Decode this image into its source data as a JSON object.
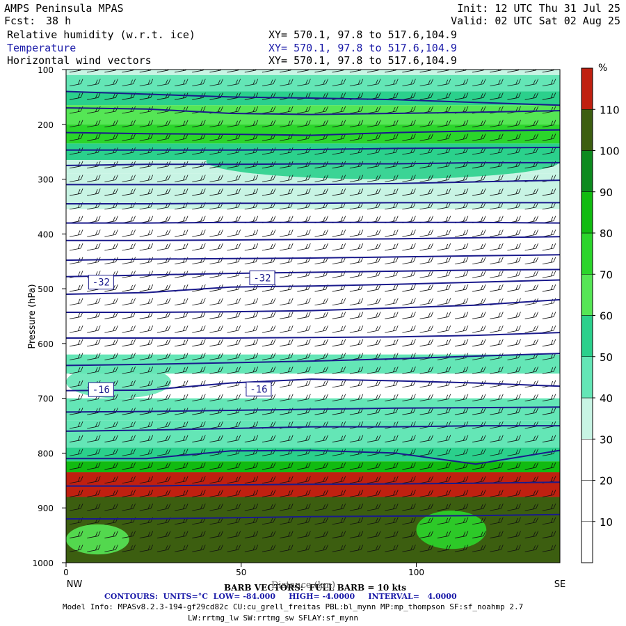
{
  "header": {
    "model": "AMPS Peninsula MPAS",
    "fcst_label": "Fcst:",
    "fcst_value": "38 h",
    "init": "Init: 12 UTC Thu 31 Jul 25",
    "valid": "Valid: 02 UTC Sat 02 Aug 25",
    "fields": [
      {
        "name": "Relative humidity (w.r.t. ice)",
        "xy": "XY= 570.1, 97.8 to 517.6,104.9",
        "color": "#000000"
      },
      {
        "name": "Temperature",
        "xy": "XY= 570.1, 97.8 to 517.6,104.9",
        "color": "#1a1aa8"
      },
      {
        "name": "Horizontal wind vectors",
        "xy": "XY= 570.1, 97.8 to 517.6,104.9",
        "color": "#000000"
      }
    ]
  },
  "footer": {
    "barb_text": "BARB VECTORS:  FULL BARB = 10 kts",
    "distance_label": "Distance (km)",
    "contours_text": "CONTOURS:  UNITS=°C  LOW= -84.000     HIGH= -4.0000     INTERVAL=   4.0000",
    "model_info_1": "Model Info: MPASv8.2.3-194-gf29cd82c CU:cu_grell_freitas PBL:bl_mynn MP:mp_thompson SF:sf_noahmp 2.7",
    "model_info_2": "LW:rrtmg_lw SW:rrtmg_sw SFLAY:sf_mynn"
  },
  "chart_data": {
    "type": "heatmap",
    "x_label": "Distance (km)",
    "y_label": "Pressure (hPa)",
    "xlim": [
      0,
      141
    ],
    "ylim": [
      1000,
      100
    ],
    "x_ticks": [
      0,
      50,
      100
    ],
    "y_ticks": [
      100,
      200,
      300,
      400,
      500,
      600,
      700,
      800,
      900,
      1000
    ],
    "x_end_labels": {
      "left": "NW",
      "right": "SE"
    },
    "colorbar": {
      "unit": "%",
      "levels": [
        0,
        10,
        20,
        30,
        40,
        50,
        60,
        70,
        80,
        90,
        100,
        110,
        120
      ],
      "tick_labels": [
        "10",
        "20",
        "30",
        "40",
        "50",
        "60",
        "70",
        "80",
        "90",
        "100",
        "110"
      ],
      "colors": [
        "#ffffff",
        "#ffffff",
        "#ffffff",
        "#c8f4e4",
        "#64e6b6",
        "#2bd08c",
        "#55e655",
        "#2bd52b",
        "#11bb11",
        "#0d8a1f",
        "#3c5e10",
        "#c02010"
      ]
    },
    "rh_layers": [
      {
        "p_top": 100,
        "p_bottom": 110,
        "rh": 35
      },
      {
        "p_top": 110,
        "p_bottom": 140,
        "rh": 42
      },
      {
        "p_top": 140,
        "p_bottom": 165,
        "rh": 55
      },
      {
        "p_top": 165,
        "p_bottom": 200,
        "rh": 65
      },
      {
        "p_top": 200,
        "p_bottom": 235,
        "rh": 75
      },
      {
        "p_top": 235,
        "p_bottom": 265,
        "rh": 55
      },
      {
        "p_top": 265,
        "p_bottom": 290,
        "rh": 38
      },
      {
        "p_top": 290,
        "p_bottom": 355,
        "rh": 32
      },
      {
        "p_top": 355,
        "p_bottom": 620,
        "rh": 15
      },
      {
        "p_top": 620,
        "p_bottom": 655,
        "rh": 42
      },
      {
        "p_top": 655,
        "p_bottom": 700,
        "rh": 15
      },
      {
        "p_top": 700,
        "p_bottom": 740,
        "rh": 45
      },
      {
        "p_top": 740,
        "p_bottom": 790,
        "rh": 48
      },
      {
        "p_top": 790,
        "p_bottom": 815,
        "rh": 55
      },
      {
        "p_top": 815,
        "p_bottom": 835,
        "rh": 88
      },
      {
        "p_top": 835,
        "p_bottom": 880,
        "rh": 112
      },
      {
        "p_top": 880,
        "p_bottom": 1000,
        "rh": 105
      }
    ],
    "rh_patches": [
      {
        "x": [
          40,
          141
        ],
        "p": [
          235,
          300
        ],
        "rh": 55
      },
      {
        "x": [
          0,
          30
        ],
        "p": [
          640,
          700
        ],
        "rh": 45
      },
      {
        "x": [
          100,
          120
        ],
        "p": [
          905,
          975
        ],
        "rh": 75
      },
      {
        "x": [
          0,
          18
        ],
        "p": [
          930,
          985
        ],
        "rh": 65
      }
    ],
    "temperature_contours": [
      {
        "t": -64,
        "p": [
          140,
          145,
          150,
          152,
          155,
          160,
          165
        ]
      },
      {
        "t": -62,
        "p": [
          170,
          172,
          180,
          182,
          180,
          178,
          175
        ]
      },
      {
        "t": -60,
        "p": [
          215,
          217,
          218,
          220,
          215,
          212,
          210
        ]
      },
      {
        "t": -58,
        "p": [
          247,
          247,
          247,
          246,
          244,
          243,
          242
        ]
      },
      {
        "t": -56,
        "p": [
          275,
          273,
          273,
          272,
          272,
          270,
          270
        ]
      },
      {
        "t": -54,
        "p": [
          310,
          310,
          310,
          310,
          308,
          305,
          302
        ]
      },
      {
        "t": -52,
        "p": [
          345,
          345,
          344,
          344,
          343,
          343,
          343
        ]
      },
      {
        "t": -48,
        "p": [
          380,
          380,
          379,
          379,
          379,
          379,
          380
        ]
      },
      {
        "t": -44,
        "p": [
          412,
          412,
          411,
          410,
          409,
          407,
          405
        ]
      },
      {
        "t": -40,
        "p": [
          448,
          446,
          445,
          444,
          442,
          440,
          438
        ]
      },
      {
        "t": -36,
        "p": [
          478,
          475,
          472,
          470,
          468,
          466,
          465
        ]
      },
      {
        "t": -32,
        "p": [
          510,
          507,
          497,
          495,
          492,
          488,
          484
        ]
      },
      {
        "t": -28,
        "p": [
          543,
          543,
          542,
          540,
          535,
          530,
          520
        ]
      },
      {
        "t": -24,
        "p": [
          590,
          590,
          590,
          589,
          588,
          585,
          580
        ]
      },
      {
        "t": -20,
        "p": [
          640,
          638,
          635,
          632,
          628,
          623,
          618
        ]
      },
      {
        "t": -16,
        "p": [
          686,
          685,
          672,
          665,
          668,
          672,
          678
        ]
      },
      {
        "t": -12,
        "p": [
          725,
          724,
          722,
          720,
          718,
          717,
          716
        ]
      },
      {
        "t": -10,
        "p": [
          760,
          758,
          755,
          752,
          752,
          750,
          750
        ]
      },
      {
        "t": -8,
        "p": [
          810,
          810,
          796,
          795,
          800,
          820,
          795
        ]
      },
      {
        "t": -6,
        "p": [
          860,
          860,
          858,
          857,
          856,
          855,
          853
        ]
      },
      {
        "t": -4,
        "p": [
          920,
          920,
          918,
          916,
          915,
          914,
          912
        ]
      }
    ],
    "contour_x": [
      0,
      23,
      47,
      70,
      94,
      117,
      141
    ],
    "contour_labels": [
      {
        "text": "-32",
        "x": 10,
        "p": 488
      },
      {
        "text": "-32",
        "x": 56,
        "p": 480
      },
      {
        "text": "-16",
        "x": 10,
        "p": 684
      },
      {
        "text": "-16",
        "x": 55,
        "p": 683
      }
    ],
    "wind_barbs": {
      "x_step_km": 5,
      "p_step_hpa": 25,
      "direction": "westerly",
      "full_barb_kts": 10
    }
  }
}
